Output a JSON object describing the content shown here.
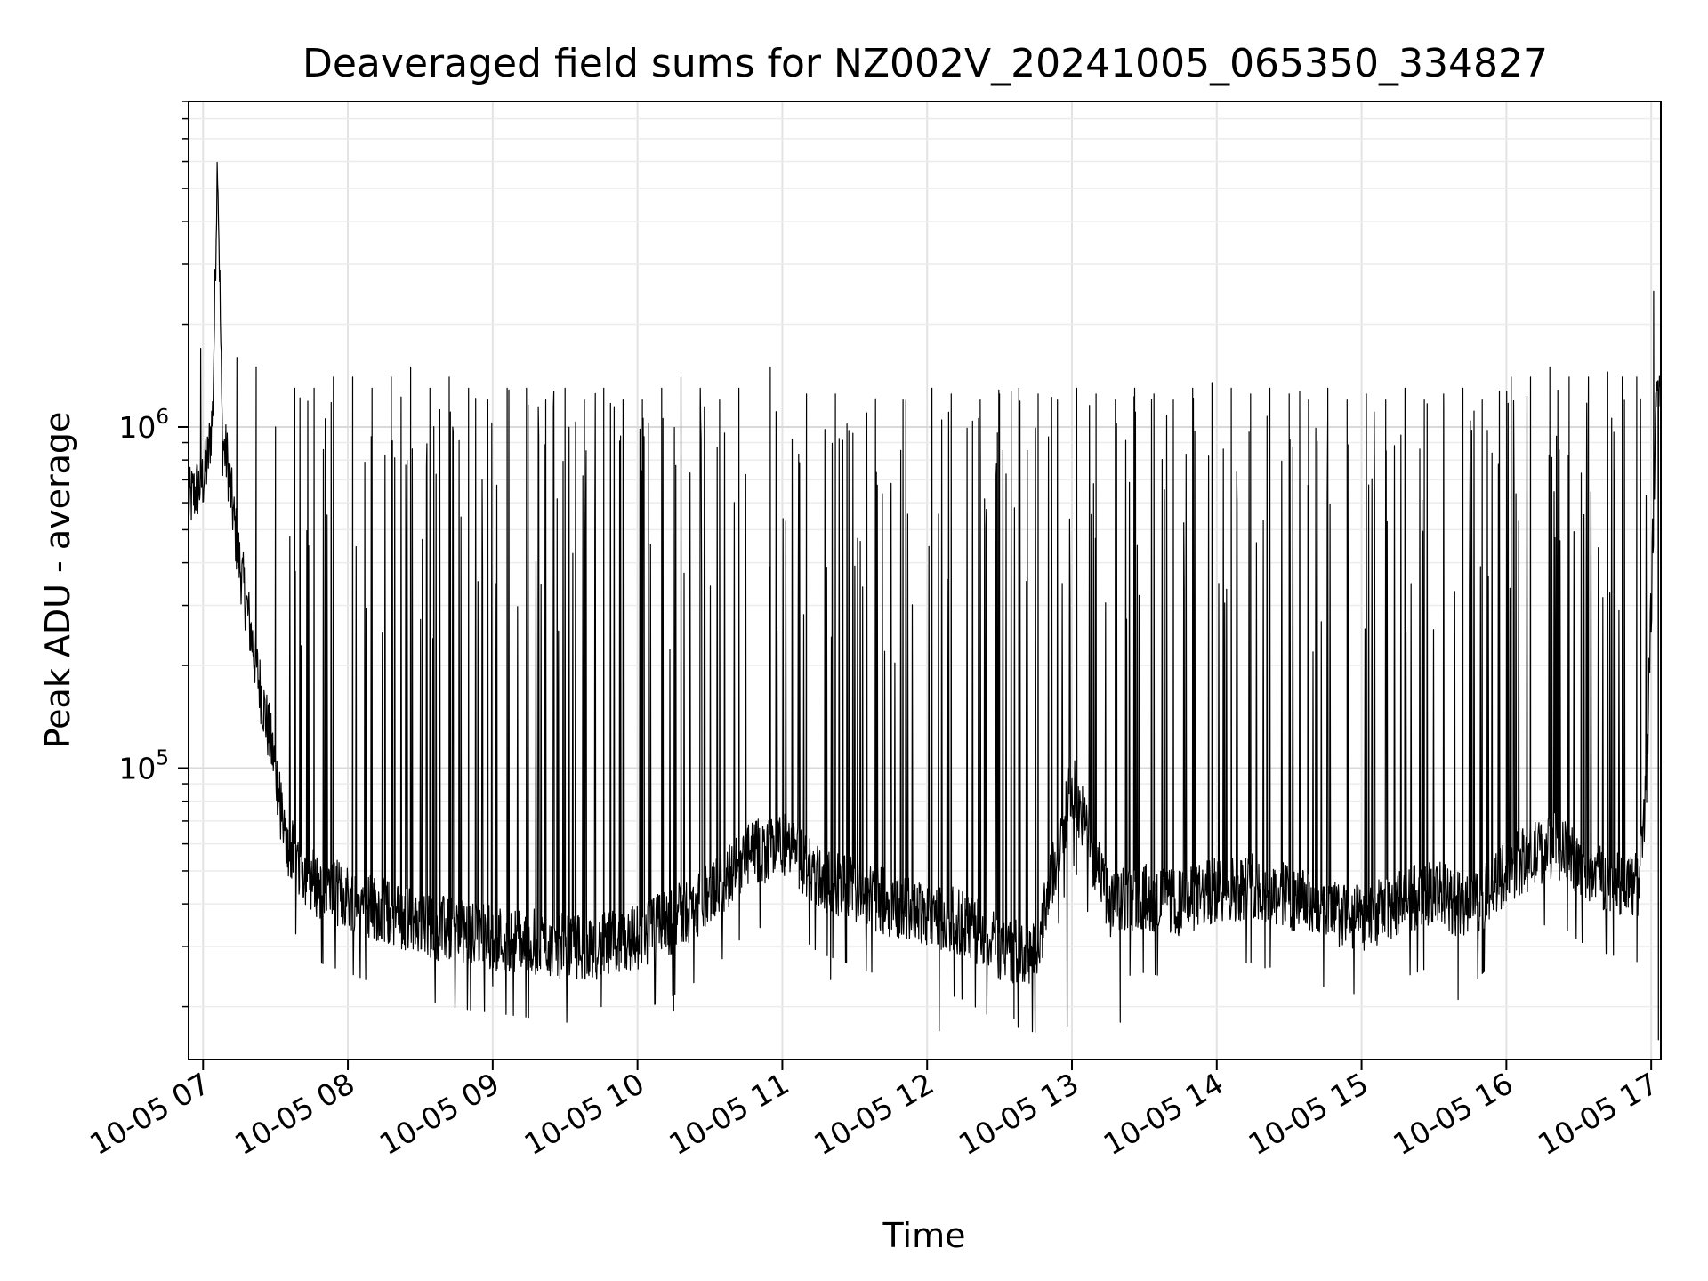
{
  "chart_data": {
    "type": "line",
    "title": "Deaveraged field sums for NZ002V_20241005_065350_334827",
    "xlabel": "Time",
    "ylabel": "Peak ADU - average",
    "yscale": "log",
    "ylim": [
      14000,
      9000000
    ],
    "xlim": [
      "2024-10-05 06:54",
      "2024-10-05 17:04"
    ],
    "grid": true,
    "line_color": "#000000",
    "x_ticks": [
      {
        "value": "2024-10-05 07:00",
        "label": "10-05 07"
      },
      {
        "value": "2024-10-05 08:00",
        "label": "10-05 08"
      },
      {
        "value": "2024-10-05 09:00",
        "label": "10-05 09"
      },
      {
        "value": "2024-10-05 10:00",
        "label": "10-05 10"
      },
      {
        "value": "2024-10-05 11:00",
        "label": "10-05 11"
      },
      {
        "value": "2024-10-05 12:00",
        "label": "10-05 12"
      },
      {
        "value": "2024-10-05 13:00",
        "label": "10-05 13"
      },
      {
        "value": "2024-10-05 14:00",
        "label": "10-05 14"
      },
      {
        "value": "2024-10-05 15:00",
        "label": "10-05 15"
      },
      {
        "value": "2024-10-05 16:00",
        "label": "10-05 16"
      },
      {
        "value": "2024-10-05 17:00",
        "label": "10-05 17"
      }
    ],
    "y_ticks": [
      {
        "value": 100000,
        "base": "10",
        "exp": "5"
      },
      {
        "value": 1000000,
        "base": "10",
        "exp": "6"
      }
    ],
    "series": [
      {
        "x": [
          "2024-10-05 06:54",
          "2024-10-05 06:57",
          "2024-10-05 07:00",
          "2024-10-05 07:02",
          "2024-10-05 07:04",
          "2024-10-05 07:06",
          "2024-10-05 07:08",
          "2024-10-05 07:10",
          "2024-10-05 07:14",
          "2024-10-05 07:18",
          "2024-10-05 07:22",
          "2024-10-05 07:26",
          "2024-10-05 07:30",
          "2024-10-05 07:34",
          "2024-10-05 07:38",
          "2024-10-05 07:42",
          "2024-10-05 07:48",
          "2024-10-05 08:00",
          "2024-10-05 08:15",
          "2024-10-05 08:30",
          "2024-10-05 08:45",
          "2024-10-05 09:00",
          "2024-10-05 09:15",
          "2024-10-05 09:30",
          "2024-10-05 09:45",
          "2024-10-05 10:00",
          "2024-10-05 10:15",
          "2024-10-05 10:30",
          "2024-10-05 10:45",
          "2024-10-05 11:00",
          "2024-10-05 11:15",
          "2024-10-05 11:30",
          "2024-10-05 11:45",
          "2024-10-05 12:00",
          "2024-10-05 12:15",
          "2024-10-05 12:30",
          "2024-10-05 12:45",
          "2024-10-05 13:00",
          "2024-10-05 13:15",
          "2024-10-05 13:30",
          "2024-10-05 13:45",
          "2024-10-05 14:00",
          "2024-10-05 14:15",
          "2024-10-05 14:30",
          "2024-10-05 14:45",
          "2024-10-05 15:00",
          "2024-10-05 15:15",
          "2024-10-05 15:30",
          "2024-10-05 15:45",
          "2024-10-05 16:00",
          "2024-10-05 16:10",
          "2024-10-05 16:20",
          "2024-10-05 16:30",
          "2024-10-05 16:40",
          "2024-10-05 16:45",
          "2024-10-05 16:50",
          "2024-10-05 16:55",
          "2024-10-05 16:58",
          "2024-10-05 17:00",
          "2024-10-05 17:02",
          "2024-10-05 17:04"
        ],
        "y": [
          600000,
          650000,
          700000,
          800000,
          1100000,
          6500000,
          900000,
          800000,
          450000,
          300000,
          200000,
          140000,
          100000,
          60000,
          55000,
          50000,
          45000,
          42000,
          38000,
          35000,
          33000,
          32000,
          31000,
          30000,
          30000,
          32000,
          36000,
          42000,
          55000,
          60000,
          48000,
          44000,
          40000,
          38000,
          35000,
          30000,
          28000,
          90000,
          40000,
          42000,
          40000,
          44000,
          45000,
          42000,
          38000,
          36000,
          40000,
          44000,
          38000,
          50000,
          55000,
          60000,
          52000,
          48000,
          47000,
          46000,
          45000,
          90000,
          300000,
          1100000,
          1700000
        ]
      }
    ],
    "spikes": [
      [
        "2024-10-05 06:59",
        1700000
      ],
      [
        "2024-10-05 07:14",
        1600000
      ],
      [
        "2024-10-05 07:22",
        1500000
      ],
      [
        "2024-10-05 07:30",
        1000000
      ],
      [
        "2024-10-05 07:38",
        1300000
      ],
      [
        "2024-10-05 07:46",
        1300000
      ],
      [
        "2024-10-05 07:54",
        1400000
      ],
      [
        "2024-10-05 08:02",
        1400000
      ],
      [
        "2024-10-05 08:10",
        1300000
      ],
      [
        "2024-10-05 08:18",
        1400000
      ],
      [
        "2024-10-05 08:26",
        1500000
      ],
      [
        "2024-10-05 08:34",
        1300000
      ],
      [
        "2024-10-05 08:42",
        1400000
      ],
      [
        "2024-10-05 08:50",
        1300000
      ],
      [
        "2024-10-05 08:58",
        1200000
      ],
      [
        "2024-10-05 09:06",
        1300000
      ],
      [
        "2024-10-05 09:14",
        1300000
      ],
      [
        "2024-10-05 09:22",
        1200000
      ],
      [
        "2024-10-05 09:30",
        1300000
      ],
      [
        "2024-10-05 09:38",
        1200000
      ],
      [
        "2024-10-05 09:46",
        1300000
      ],
      [
        "2024-10-05 09:54",
        1200000
      ],
      [
        "2024-10-05 10:02",
        1200000
      ],
      [
        "2024-10-05 10:10",
        1300000
      ],
      [
        "2024-10-05 10:18",
        1400000
      ],
      [
        "2024-10-05 10:26",
        1300000
      ],
      [
        "2024-10-05 10:34",
        1200000
      ],
      [
        "2024-10-05 10:42",
        1300000
      ],
      [
        "2024-10-05 10:55",
        1500000
      ],
      [
        "2024-10-05 11:10",
        1250000
      ],
      [
        "2024-10-05 11:22",
        1250000
      ],
      [
        "2024-10-05 11:35",
        1100000
      ],
      [
        "2024-10-05 11:50",
        1200000
      ],
      [
        "2024-10-05 12:02",
        1300000
      ],
      [
        "2024-10-05 12:10",
        1250000
      ],
      [
        "2024-10-05 12:22",
        1200000
      ],
      [
        "2024-10-05 12:30",
        1250000
      ],
      [
        "2024-10-05 12:38",
        1300000
      ],
      [
        "2024-10-05 12:46",
        1250000
      ],
      [
        "2024-10-05 12:54",
        1200000
      ],
      [
        "2024-10-05 13:02",
        1300000
      ],
      [
        "2024-10-05 13:10",
        1250000
      ],
      [
        "2024-10-05 13:18",
        1200000
      ],
      [
        "2024-10-05 13:26",
        1300000
      ],
      [
        "2024-10-05 13:34",
        1250000
      ],
      [
        "2024-10-05 13:42",
        1200000
      ],
      [
        "2024-10-05 13:50",
        1300000
      ],
      [
        "2024-10-05 13:58",
        1350000
      ],
      [
        "2024-10-05 14:06",
        1300000
      ],
      [
        "2024-10-05 14:14",
        1250000
      ],
      [
        "2024-10-05 14:22",
        1300000
      ],
      [
        "2024-10-05 14:30",
        1250000
      ],
      [
        "2024-10-05 14:38",
        1200000
      ],
      [
        "2024-10-05 14:46",
        1300000
      ],
      [
        "2024-10-05 14:54",
        1200000
      ],
      [
        "2024-10-05 15:02",
        1250000
      ],
      [
        "2024-10-05 15:10",
        1200000
      ],
      [
        "2024-10-05 15:18",
        1300000
      ],
      [
        "2024-10-05 15:26",
        1200000
      ],
      [
        "2024-10-05 15:34",
        1250000
      ],
      [
        "2024-10-05 15:42",
        1300000
      ],
      [
        "2024-10-05 15:50",
        1200000
      ],
      [
        "2024-10-05 16:02",
        1400000
      ],
      [
        "2024-10-05 16:10",
        1400000
      ],
      [
        "2024-10-05 16:18",
        1500000
      ],
      [
        "2024-10-05 16:26",
        1400000
      ],
      [
        "2024-10-05 16:34",
        1400000
      ],
      [
        "2024-10-05 16:42",
        1450000
      ],
      [
        "2024-10-05 16:48",
        1400000
      ],
      [
        "2024-10-05 16:54",
        1400000
      ],
      [
        "2024-10-05 17:01",
        2500000
      ]
    ],
    "dips": [
      [
        "2024-10-05 09:00",
        23000
      ],
      [
        "2024-10-05 09:45",
        20000
      ],
      [
        "2024-10-05 10:15",
        19500
      ],
      [
        "2024-10-05 11:20",
        24000
      ],
      [
        "2024-10-05 12:05",
        17000
      ],
      [
        "2024-10-05 12:36",
        18500
      ],
      [
        "2024-10-05 12:58",
        17500
      ],
      [
        "2024-10-05 13:20",
        18000
      ],
      [
        "2024-10-05 14:20",
        26000
      ],
      [
        "2024-10-05 15:40",
        21000
      ],
      [
        "2024-10-05 17:03",
        16000
      ]
    ]
  }
}
